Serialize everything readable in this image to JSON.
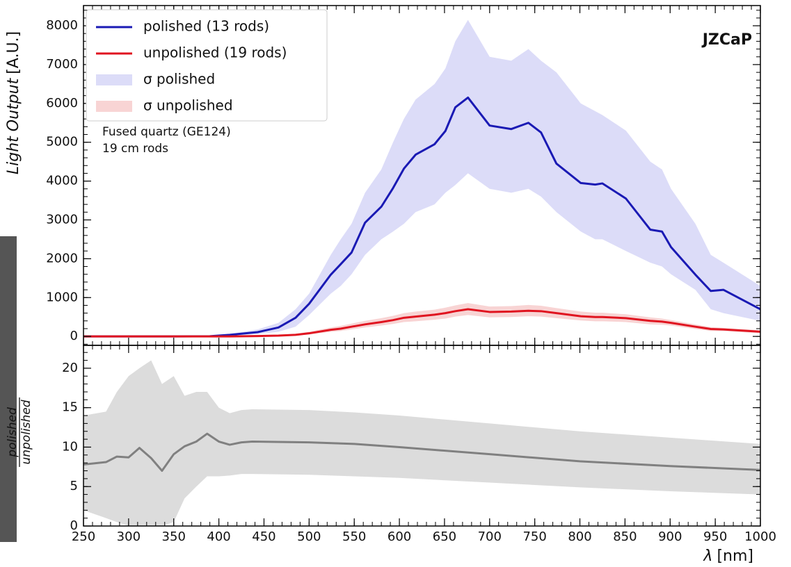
{
  "chart_data": [
    {
      "type": "line",
      "ylabel": {
        "text": "Light Output",
        "unit": "[A.U.]"
      },
      "label": "JZCaP",
      "annotation": [
        "Fused quartz (GE124)",
        "19 cm rods"
      ],
      "legend": "upper left",
      "xlim": [
        250,
        1000
      ],
      "xticks": [
        250,
        300,
        350,
        400,
        450,
        500,
        550,
        600,
        650,
        700,
        750,
        800,
        850,
        900,
        950,
        1000
      ],
      "ylim": [
        -230,
        8520
      ],
      "yticks": [
        0,
        1000,
        2000,
        3000,
        4000,
        5000,
        6000,
        7000,
        8000
      ],
      "x": [
        250,
        300,
        350,
        390,
        412,
        443,
        466,
        485,
        500,
        524,
        535,
        547,
        562,
        580,
        593,
        605,
        618,
        639,
        651,
        662,
        676,
        700,
        724,
        743,
        757,
        774,
        801,
        817,
        825,
        851,
        878,
        891,
        901,
        928,
        945,
        959,
        1000
      ],
      "series": [
        {
          "name": "polished (13 rods)",
          "color": "#1a1ab4",
          "values": [
            0,
            0,
            0,
            5,
            40,
            110,
            230,
            480,
            840,
            1590,
            1860,
            2160,
            2930,
            3340,
            3820,
            4320,
            4680,
            4950,
            5290,
            5900,
            6150,
            5430,
            5340,
            5500,
            5250,
            4450,
            3950,
            3910,
            3940,
            3550,
            2750,
            2700,
            2300,
            1590,
            1170,
            1200,
            700
          ]
        },
        {
          "name": "unpolished (19 rods)",
          "color": "#e01420",
          "values": [
            0,
            0,
            0,
            0,
            0,
            10,
            20,
            40,
            80,
            170,
            200,
            250,
            310,
            370,
            420,
            480,
            510,
            560,
            600,
            650,
            700,
            630,
            640,
            660,
            650,
            600,
            520,
            500,
            500,
            470,
            400,
            380,
            350,
            250,
            190,
            180,
            120
          ]
        },
        {
          "name": "σ polished",
          "color": "#dcdcf8",
          "lower": [
            0,
            0,
            0,
            0,
            20,
            60,
            120,
            250,
            550,
            1100,
            1300,
            1600,
            2100,
            2500,
            2700,
            2900,
            3200,
            3400,
            3700,
            3900,
            4200,
            3800,
            3700,
            3800,
            3600,
            3200,
            2700,
            2500,
            2500,
            2200,
            1900,
            1800,
            1600,
            1200,
            700,
            600,
            400
          ],
          "upper": [
            0,
            0,
            0,
            20,
            60,
            180,
            350,
            700,
            1100,
            2100,
            2500,
            2900,
            3700,
            4300,
            5000,
            5600,
            6100,
            6500,
            6900,
            7600,
            8150,
            7200,
            7100,
            7400,
            7100,
            6800,
            6000,
            5800,
            5700,
            5300,
            4500,
            4300,
            3800,
            2900,
            2100,
            1900,
            1300
          ]
        },
        {
          "name": "σ unpolished",
          "color": "#f8d4d4",
          "lower": [
            0,
            0,
            0,
            0,
            0,
            0,
            5,
            20,
            50,
            120,
            140,
            180,
            230,
            280,
            320,
            370,
            390,
            430,
            460,
            510,
            550,
            490,
            500,
            520,
            510,
            470,
            410,
            390,
            390,
            370,
            310,
            300,
            280,
            190,
            140,
            140,
            80
          ],
          "upper": [
            0,
            0,
            0,
            0,
            10,
            20,
            40,
            70,
            120,
            230,
            270,
            330,
            400,
            470,
            530,
            600,
            640,
            690,
            740,
            800,
            860,
            770,
            780,
            810,
            790,
            730,
            640,
            610,
            610,
            570,
            490,
            460,
            420,
            310,
            240,
            220,
            160
          ]
        }
      ]
    },
    {
      "type": "line",
      "ylabel": {
        "numerator": "polished",
        "denominator": "unpolished"
      },
      "xlabel": {
        "symbol": "λ",
        "unit": "[nm]"
      },
      "xlim": [
        250,
        1000
      ],
      "xticks": [
        250,
        300,
        350,
        400,
        450,
        500,
        550,
        600,
        650,
        700,
        750,
        800,
        850,
        900,
        950,
        1000
      ],
      "ylim": [
        0,
        22.9
      ],
      "yticks": [
        0,
        5,
        10,
        15,
        20
      ],
      "x": [
        250,
        275,
        287,
        300,
        312,
        325,
        337,
        350,
        362,
        375,
        387,
        400,
        412,
        425,
        437,
        500,
        550,
        600,
        700,
        800,
        900,
        1000
      ],
      "series": [
        {
          "color": "#dcdcdc",
          "lower": [
            2,
            1,
            0.5,
            0,
            0,
            0,
            0,
            0.5,
            3.5,
            5,
            6.3,
            6.3,
            6.4,
            6.6,
            6.6,
            6.5,
            6.3,
            6.1,
            5.5,
            4.9,
            4.4,
            4.0
          ],
          "upper": [
            14,
            14.5,
            17,
            19,
            20,
            21,
            18,
            19,
            16.5,
            17,
            17,
            15,
            14.3,
            14.7,
            14.8,
            14.7,
            14.4,
            14,
            13,
            12,
            11.2,
            10.4
          ]
        },
        {
          "color": "#808080",
          "values": [
            7.8,
            8.1,
            8.8,
            8.7,
            9.9,
            8.6,
            7.0,
            9.1,
            10.1,
            10.7,
            11.7,
            10.7,
            10.3,
            10.6,
            10.7,
            10.6,
            10.4,
            10.0,
            9.1,
            8.2,
            7.6,
            7.1
          ]
        }
      ]
    }
  ]
}
